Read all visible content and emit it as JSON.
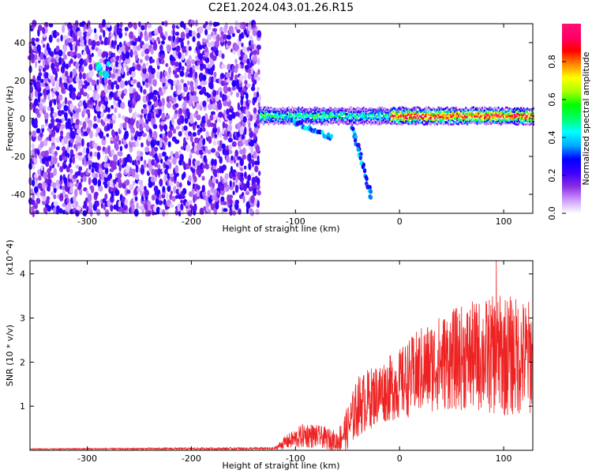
{
  "title": "C2E1.2024.043.01.26.R15",
  "colors": {
    "snr_line": "#ee2222"
  },
  "chart_data": [
    {
      "type": "heatmap",
      "xlabel": "Height of straight line (km)",
      "ylabel": "Frequency (Hz)",
      "xlim": [
        -355,
        128
      ],
      "ylim": [
        -50,
        50
      ],
      "x_ticks": [
        -300,
        -200,
        -100,
        0,
        100
      ],
      "y_ticks": [
        -40,
        -20,
        0,
        20,
        40
      ],
      "colorbar": {
        "label": "Normalized spectral amplitude",
        "range": [
          0,
          1
        ],
        "ticks": [
          "0.0",
          "0.2",
          "0.4",
          "0.6",
          "0.8"
        ],
        "colors": [
          "#ffffff",
          "#cc99ff",
          "#8a2be2",
          "#3b00ff",
          "#0000ff",
          "#00aaff",
          "#00ffff",
          "#00ff66",
          "#00ff00",
          "#aaff00",
          "#ffff00",
          "#ff8800",
          "#ff0000",
          "#ff0066",
          "#ff1177"
        ]
      },
      "features": {
        "noise_region_x": [
          -355,
          -135
        ],
        "noise_region_freq": [
          -50,
          50
        ],
        "bright_spot": {
          "x": -285,
          "freq": 26
        },
        "trail_band": {
          "x": [
            -135,
            128
          ],
          "freq_center": 2,
          "freq_halfwidth": 4
        },
        "descending_branches": [
          {
            "from": [
              -110,
              0
            ],
            "to": [
              -65,
              -10
            ]
          },
          {
            "from": [
              -45,
              -5
            ],
            "to": [
              -27,
              -42
            ]
          }
        ]
      }
    },
    {
      "type": "line",
      "xlabel": "Height of straight line (km)",
      "ylabel": "SNR (10 * v/v)",
      "y_multiplier": "(x10^4)",
      "xlim": [
        -355,
        128
      ],
      "ylim": [
        0,
        4.3
      ],
      "x_ticks": [
        -300,
        -200,
        -100,
        0,
        100
      ],
      "y_ticks": [
        1,
        2,
        3,
        4
      ],
      "series": [
        {
          "envelope": {
            "x": [
              -355,
              -120,
              -110,
              -90,
              -75,
              -60,
              -50,
              -40,
              -20,
              0,
              20,
              40,
              60,
              80,
              100,
              128
            ],
            "mean": [
              0.03,
              0.04,
              0.18,
              0.35,
              0.3,
              0.2,
              0.5,
              1.0,
              1.3,
              1.5,
              1.8,
              2.0,
              2.1,
              2.15,
              2.15,
              2.1
            ],
            "amp": [
              0.01,
              0.03,
              0.15,
              0.3,
              0.25,
              0.25,
              0.5,
              0.7,
              0.7,
              0.8,
              1.0,
              1.1,
              1.2,
              1.3,
              1.4,
              1.3
            ]
          },
          "peak": {
            "x": 93,
            "y": 4.3
          }
        }
      ]
    }
  ]
}
